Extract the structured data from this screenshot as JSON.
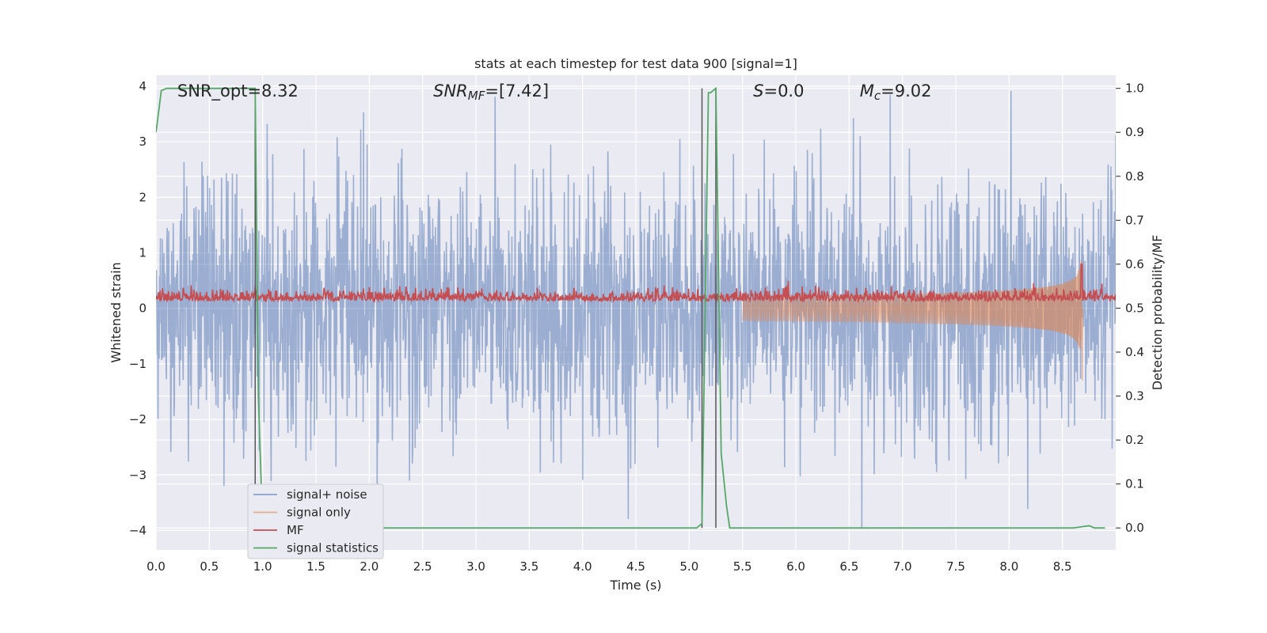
{
  "chart_data": {
    "type": "line",
    "title": "stats at each timestep for test data 900 [signal=1]",
    "xlabel": "Time (s)",
    "ylabel": "Whitened strain",
    "ylabel_right": "Detection probability/MF",
    "xlim": [
      0.0,
      9.0
    ],
    "ylim": [
      -4.35,
      4.2
    ],
    "ylim_right": [
      -0.05,
      1.03
    ],
    "x_ticks": [
      0.0,
      0.5,
      1.0,
      1.5,
      2.0,
      2.5,
      3.0,
      3.5,
      4.0,
      4.5,
      5.0,
      5.5,
      6.0,
      6.5,
      7.0,
      7.5,
      8.0,
      8.5
    ],
    "x_tick_labels": [
      "0.0",
      "0.5",
      "1.0",
      "1.5",
      "2.0",
      "2.5",
      "3.0",
      "3.5",
      "4.0",
      "4.5",
      "5.0",
      "5.5",
      "6.0",
      "6.5",
      "7.0",
      "7.5",
      "8.0",
      "8.5"
    ],
    "y_ticks": [
      4,
      3,
      2,
      1,
      0,
      -1,
      -2,
      -3,
      -4
    ],
    "y_tick_labels": [
      "4",
      "3",
      "2",
      "1",
      "0",
      "−1",
      "−2",
      "−3",
      "−4"
    ],
    "y_right_ticks": [
      1.0,
      0.9,
      0.8,
      0.7,
      0.6,
      0.5,
      0.4,
      0.3,
      0.2,
      0.1,
      0.0
    ],
    "y_right_tick_labels": [
      "1.0",
      "0.9",
      "0.8",
      "0.7",
      "0.6",
      "0.5",
      "0.4",
      "0.3",
      "0.2",
      "0.1",
      "0.0"
    ],
    "grid": true,
    "legend_position": "bottom-left",
    "annotations": [
      {
        "id": "snr-opt",
        "text": "SNR_opt=8.32",
        "x": 0.2
      },
      {
        "id": "snr-mf",
        "text": "SNR_MF=[7.42]",
        "x": 2.6
      },
      {
        "id": "s-stat",
        "text": "S=0.0",
        "x": 5.6
      },
      {
        "id": "mc",
        "text": "M_c=9.02",
        "x": 6.6
      }
    ],
    "vertical_markers_x": [
      0.93,
      5.12,
      5.25
    ],
    "series": [
      {
        "name": "signal+ noise",
        "color": "#4c72b0",
        "axis": "left",
        "description_values": "whitened noise spanning roughly -4 to 4 over 0-9 s",
        "amplitude_range": [
          -4.0,
          4.0
        ]
      },
      {
        "name": "signal only",
        "color": "#dd8452",
        "axis": "left",
        "chirp_start_x": 5.5,
        "chirp_peak_x": 8.68,
        "chirp_peak_amplitude": 1.0
      },
      {
        "name": "MF",
        "color": "#c44e52",
        "axis": "right",
        "baseline": 0.52,
        "peak_x": 8.68,
        "peak_value": 0.6
      },
      {
        "name": "signal statistics",
        "color": "#55a868",
        "axis": "right",
        "x": [
          0.0,
          0.05,
          0.1,
          0.2,
          0.5,
          0.9,
          0.93,
          0.96,
          1.0,
          1.5,
          1.7,
          1.75,
          1.8,
          2.0,
          3.0,
          4.0,
          5.0,
          5.07,
          5.12,
          5.15,
          5.18,
          5.2,
          5.25,
          5.3,
          5.35,
          5.38,
          5.5,
          6.0,
          7.0,
          8.0,
          8.6,
          8.75,
          8.8,
          8.9
        ],
        "y": [
          0.9,
          0.995,
          1.0,
          1.0,
          1.0,
          1.0,
          1.0,
          0.3,
          0.0,
          0.0,
          0.005,
          0.008,
          0.002,
          0.0,
          0.0,
          0.0,
          0.0,
          0.0,
          0.01,
          0.5,
          0.99,
          0.99,
          1.0,
          0.17,
          0.05,
          0.0,
          0.0,
          0.0,
          0.0,
          0.0,
          0.0,
          0.005,
          0.0,
          0.0
        ]
      }
    ],
    "colors": {
      "background": "#eaeaf2",
      "grid": "#ffffff",
      "marker": "#555555"
    }
  }
}
